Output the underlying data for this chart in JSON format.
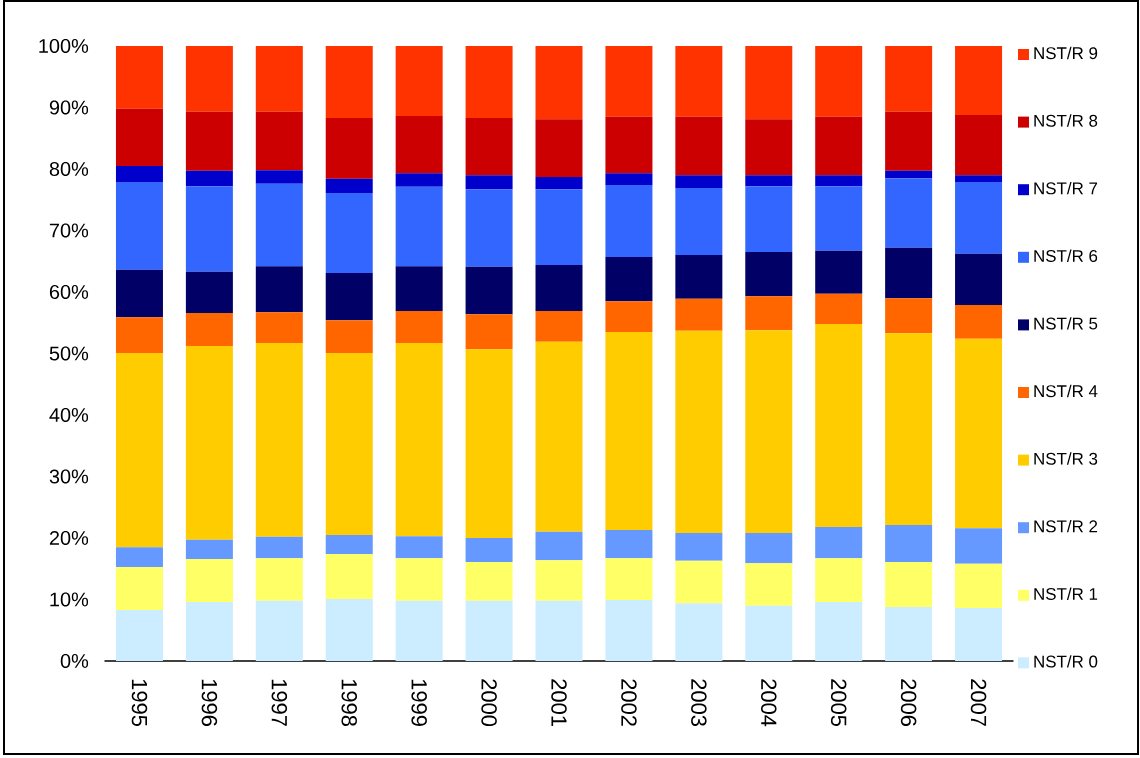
{
  "chart_data": {
    "type": "bar",
    "stacked": true,
    "legend": "right",
    "categories": [
      "1995",
      "1996",
      "1997",
      "1998",
      "1999",
      "2000",
      "2001",
      "2002",
      "2003",
      "2004",
      "2005",
      "2006",
      "2007"
    ],
    "series": [
      {
        "name": "NST/R 0",
        "color": "#ccecff",
        "values": [
          8.3,
          9.6,
          9.8,
          10.1,
          9.8,
          9.8,
          9.8,
          9.9,
          9.4,
          9.0,
          9.6,
          8.8,
          8.6
        ]
      },
      {
        "name": "NST/R 1",
        "color": "#ffff66",
        "values": [
          7.0,
          7.0,
          6.9,
          7.3,
          6.9,
          6.3,
          6.6,
          6.8,
          6.9,
          6.9,
          7.1,
          7.3,
          7.2
        ]
      },
      {
        "name": "NST/R 2",
        "color": "#6699ff",
        "values": [
          3.2,
          3.1,
          3.5,
          3.1,
          3.6,
          3.9,
          4.6,
          4.6,
          4.5,
          4.9,
          5.1,
          6.0,
          5.8
        ]
      },
      {
        "name": "NST/R 3",
        "color": "#ffcc00",
        "values": [
          31.6,
          31.5,
          31.5,
          29.6,
          31.4,
          30.7,
          30.9,
          32.2,
          32.9,
          33.0,
          33.0,
          31.2,
          30.8
        ]
      },
      {
        "name": "NST/R 4",
        "color": "#ff6600",
        "values": [
          5.8,
          5.4,
          5.0,
          5.3,
          5.2,
          5.7,
          5.0,
          5.0,
          5.2,
          5.5,
          4.9,
          5.7,
          5.5
        ]
      },
      {
        "name": "NST/R 5",
        "color": "#000066",
        "values": [
          7.7,
          6.7,
          7.5,
          7.7,
          7.3,
          7.7,
          7.5,
          7.2,
          7.1,
          7.2,
          7.0,
          8.2,
          8.3
        ]
      },
      {
        "name": "NST/R 6",
        "color": "#3366ff",
        "values": [
          14.3,
          13.9,
          13.4,
          13.0,
          12.9,
          12.6,
          12.3,
          11.7,
          10.9,
          10.7,
          10.5,
          11.3,
          11.7
        ]
      },
      {
        "name": "NST/R 7",
        "color": "#0000cc",
        "values": [
          2.6,
          2.5,
          2.2,
          2.3,
          2.2,
          2.3,
          2.0,
          1.9,
          2.1,
          1.8,
          1.8,
          1.2,
          1.1
        ]
      },
      {
        "name": "NST/R 8",
        "color": "#cc0000",
        "values": [
          9.3,
          9.6,
          9.5,
          9.9,
          9.3,
          9.3,
          9.4,
          9.2,
          9.5,
          9.1,
          9.5,
          9.6,
          9.8
        ]
      },
      {
        "name": "NST/R 9",
        "color": "#ff3300",
        "values": [
          10.2,
          10.7,
          10.7,
          11.7,
          11.4,
          11.7,
          11.9,
          11.5,
          11.5,
          11.9,
          11.5,
          10.7,
          11.2
        ]
      }
    ],
    "ylim": [
      0,
      100
    ],
    "yticks": [
      {
        "value": 0,
        "label": "0%"
      },
      {
        "value": 10,
        "label": "10%"
      },
      {
        "value": 20,
        "label": "20%"
      },
      {
        "value": 30,
        "label": "30%"
      },
      {
        "value": 40,
        "label": "40%"
      },
      {
        "value": 50,
        "label": "50%"
      },
      {
        "value": 60,
        "label": "60%"
      },
      {
        "value": 70,
        "label": "70%"
      },
      {
        "value": 80,
        "label": "80%"
      },
      {
        "value": 90,
        "label": "90%"
      },
      {
        "value": 100,
        "label": "100%"
      }
    ]
  }
}
